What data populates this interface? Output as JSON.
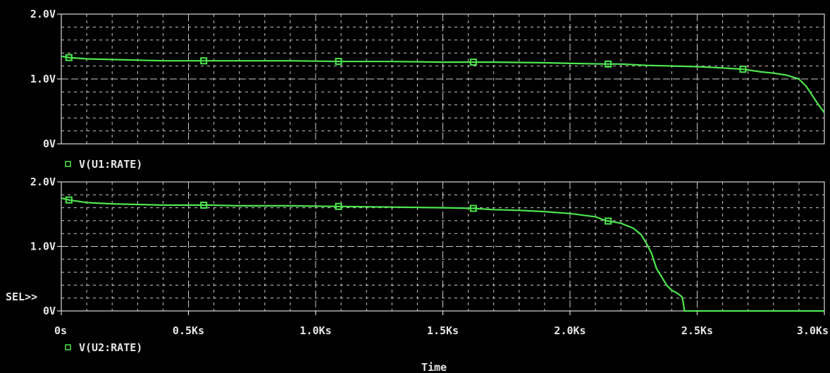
{
  "colors": {
    "background": "#000000",
    "grid": "#c8c8c8",
    "frame": "#d9d9d9",
    "text": "#e6e6e6",
    "trace": "#4ee64e"
  },
  "x_axis": {
    "label": "Time",
    "tick_labels": [
      "0s",
      "0.5Ks",
      "1.0Ks",
      "1.5Ks",
      "2.0Ks",
      "2.5Ks",
      "3.0Ks"
    ]
  },
  "sel_marker": "SEL>>",
  "chart_data": [
    {
      "type": "line",
      "ylim": [
        0,
        2
      ],
      "xlim": [
        0,
        3000
      ],
      "y_tick_labels": [
        "2.0V",
        "1.0V",
        "0V"
      ],
      "grid": true,
      "legend_position": "bottom-left",
      "series": [
        {
          "name": "V(U1:RATE)",
          "x": [
            0,
            30,
            100,
            200,
            300,
            400,
            500,
            580,
            700,
            900,
            1100,
            1300,
            1500,
            1620,
            1700,
            1900,
            2000,
            2140,
            2200,
            2300,
            2400,
            2500,
            2600,
            2680,
            2750,
            2800,
            2850,
            2900,
            2930,
            2950,
            2970,
            3000
          ],
          "y": [
            1.35,
            1.33,
            1.31,
            1.3,
            1.29,
            1.28,
            1.28,
            1.28,
            1.28,
            1.28,
            1.27,
            1.27,
            1.26,
            1.26,
            1.26,
            1.25,
            1.24,
            1.23,
            1.23,
            1.21,
            1.2,
            1.19,
            1.17,
            1.15,
            1.11,
            1.09,
            1.06,
            1.0,
            0.88,
            0.76,
            0.64,
            0.48
          ]
        },
        {
          "name": "V(U2:RATE)",
          "x": [
            0,
            30,
            100,
            200,
            300,
            400,
            500,
            580,
            700,
            900,
            1100,
            1300,
            1500,
            1620,
            1700,
            1800,
            1900,
            2000,
            2100,
            2140,
            2200,
            2250,
            2280,
            2300,
            2320,
            2340,
            2360,
            2380,
            2400,
            2420,
            2440,
            2445,
            2450,
            2500,
            2600,
            2700,
            2800,
            2900,
            3000
          ],
          "y": [
            1.75,
            1.72,
            1.68,
            1.66,
            1.65,
            1.64,
            1.64,
            1.64,
            1.63,
            1.63,
            1.62,
            1.61,
            1.6,
            1.59,
            1.57,
            1.56,
            1.54,
            1.51,
            1.46,
            1.4,
            1.36,
            1.28,
            1.18,
            1.05,
            0.9,
            0.66,
            0.53,
            0.4,
            0.32,
            0.28,
            0.22,
            0.14,
            0.0,
            0.0,
            0.0,
            0.0,
            0.0,
            0.0,
            0.0
          ]
        }
      ]
    }
  ]
}
